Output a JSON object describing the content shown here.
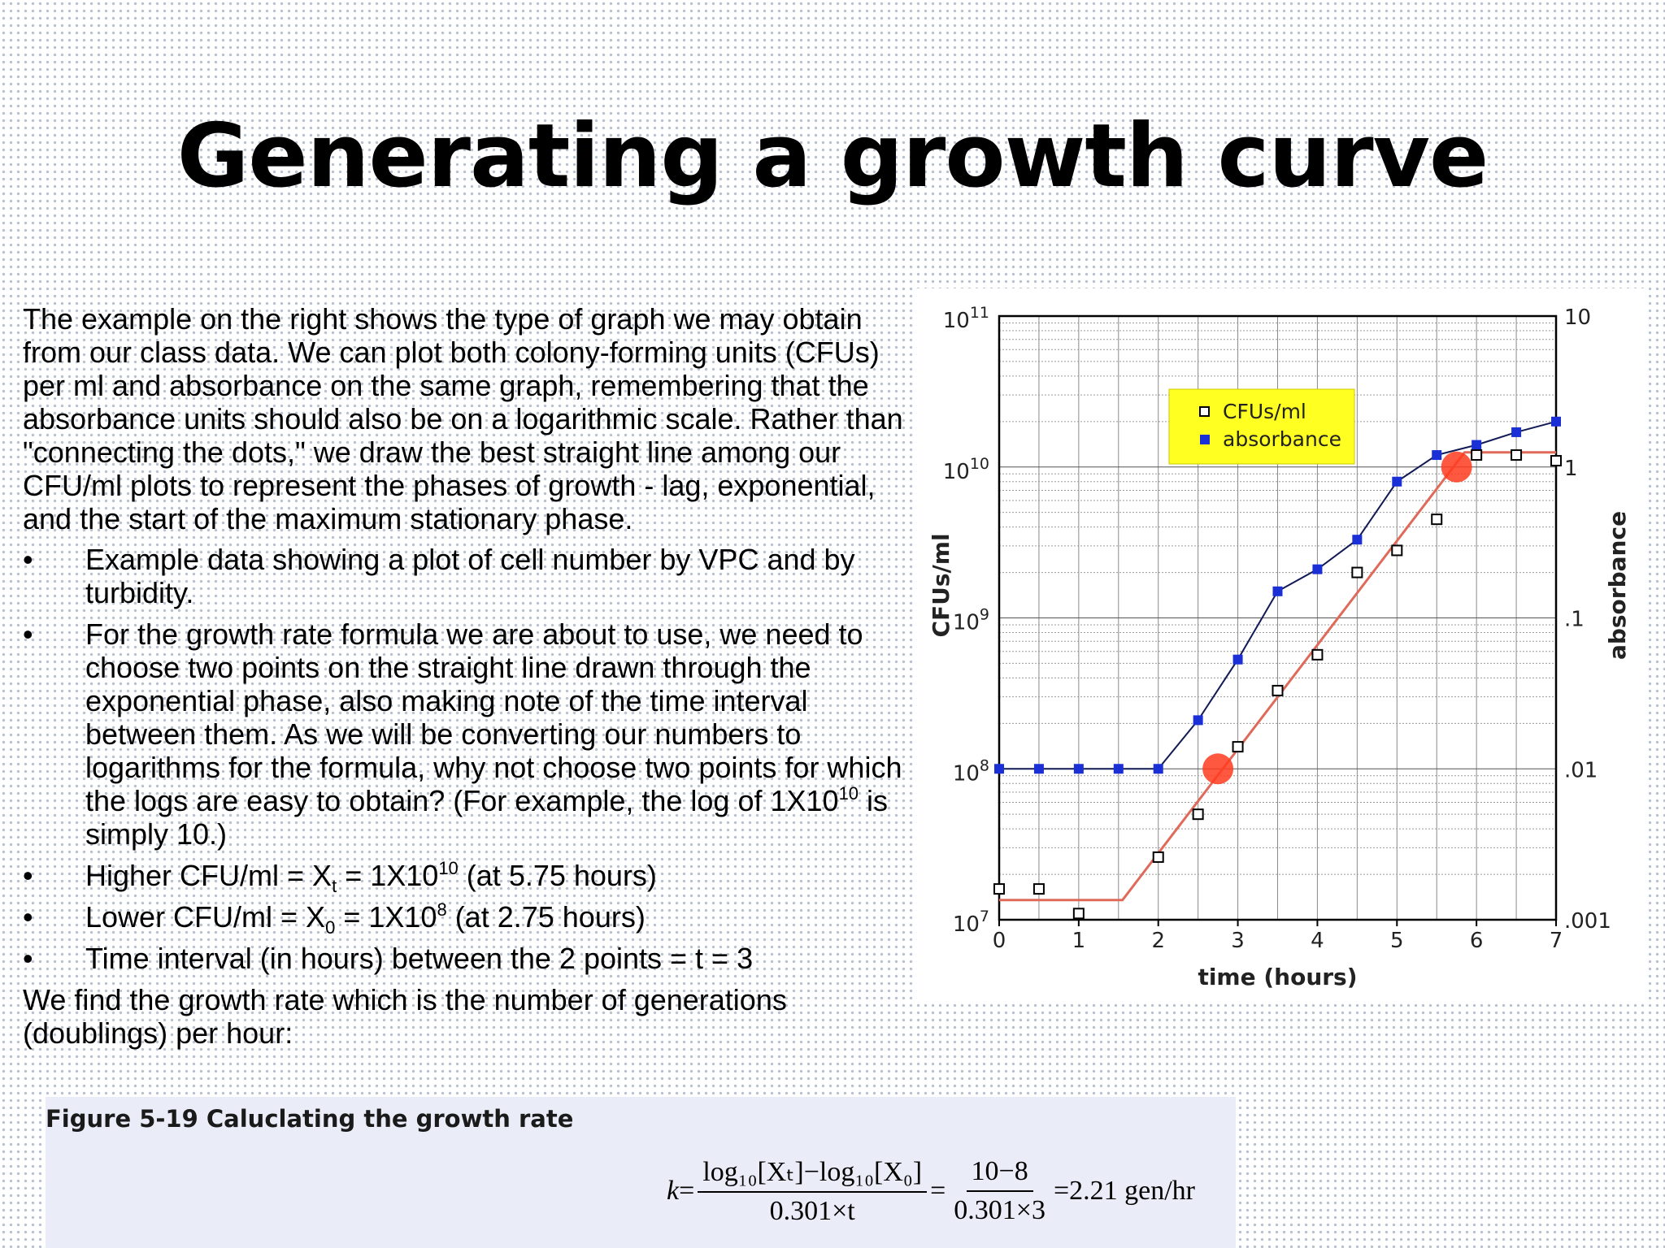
{
  "slide": {
    "title": "Generating a growth curve",
    "intro": "The example on the right shows the type of graph we may obtain from our class data. We can plot both colony-forming units (CFUs) per ml and absorbance on the same graph, remembering that the absorbance units should also be on a logarithmic scale. Rather than \"connecting the dots,\" we draw the best straight line among our CFU/ml plots to represent the phases of growth - lag, exponential, and the start of the maximum stationary phase.",
    "bullet_symbol": "•",
    "bullets": {
      "b1": "Example data showing a plot of cell number by VPC and by turbidity.",
      "b2_text": "For the growth rate formula we are about to use, we need to choose two points on the straight line drawn through the exponential phase, also making note of the time interval between them. As we will be converting our numbers to logarithms for the formula, why not choose two points for which the logs are easy to obtain? (For example, the log of 1X10",
      "b2_exp": "10",
      "b2_end": " is simply 10.)",
      "b3_a": "Higher CFU/ml = X",
      "b3_sub": "t",
      "b3_b": " = 1X10",
      "b3_exp": "10",
      "b3_c": " (at 5.75 hours)",
      "b4_a": "Lower CFU/ml = X",
      "b4_sub": "0",
      "b4_b": " = 1X10",
      "b4_exp": "8",
      "b4_c": " (at 2.75 hours)",
      "b5": "Time interval (in hours) between the 2 points = t = 3"
    },
    "closing": "We find the growth rate which is the number of generations (doublings) per hour:"
  },
  "figure": {
    "caption": "Figure 5-19 Caluclating the growth rate",
    "formula": {
      "k": "k",
      "eq": "=",
      "num1": "log₁₀[Xₜ]−log₁₀[X₀]",
      "den1": "0.301×t",
      "num2": "10−8",
      "den2": "0.301×3",
      "result": "=2.21 gen/hr"
    }
  },
  "chart_data": {
    "type": "scatter",
    "xlabel": "time (hours)",
    "ylabel_left": "CFUs/ml",
    "ylabel_right": "absorbance",
    "xlim": [
      0,
      7
    ],
    "x_ticks": [
      "0",
      "1",
      "2",
      "3",
      "4",
      "5",
      "6",
      "7"
    ],
    "ylim_left_log10": [
      7,
      11
    ],
    "y_left_ticks": [
      {
        "base": "10",
        "exp": "7",
        "log": 7
      },
      {
        "base": "10",
        "exp": "8",
        "log": 8
      },
      {
        "base": "10",
        "exp": "9",
        "log": 9
      },
      {
        "base": "10",
        "exp": "10",
        "log": 10
      },
      {
        "base": "10",
        "exp": "11",
        "log": 11
      }
    ],
    "ylim_right_log10": [
      -3,
      1
    ],
    "y_right_ticks": [
      {
        "label": ".001",
        "log": -3
      },
      {
        "label": ".01",
        "log": -2
      },
      {
        "label": ".1",
        "log": -1
      },
      {
        "label": "1",
        "log": 0
      },
      {
        "label": "10",
        "log": 1
      }
    ],
    "scale": "log",
    "grid": true,
    "legend_position": "top-center",
    "legend_bg": "#ffff22",
    "series": [
      {
        "name": "CFUs/ml",
        "marker": "open-square",
        "color": "#000000",
        "x": [
          0,
          0.5,
          1,
          2,
          2.5,
          3,
          3.5,
          4,
          4.5,
          5,
          5.5,
          6,
          6.5,
          7
        ],
        "y": [
          16000000.0,
          16000000.0,
          11000000.0,
          26000000.0,
          50000000.0,
          140000000.0,
          330000000.0,
          570000000.0,
          2000000000.0,
          2800000000.0,
          4500000000.0,
          12000000000.0,
          12000000000.0,
          11000000000.0
        ]
      },
      {
        "name": "absorbance",
        "marker": "filled-square",
        "color": "#1a2fd6",
        "x": [
          0,
          0.5,
          1,
          1.5,
          2,
          2.5,
          3,
          3.5,
          4,
          4.5,
          5,
          5.5,
          6,
          6.5,
          7
        ],
        "y": [
          0.01,
          0.01,
          0.01,
          0.01,
          0.01,
          0.021,
          0.053,
          0.15,
          0.21,
          0.33,
          0.8,
          1.2,
          1.4,
          1.7,
          2.0
        ]
      }
    ],
    "fit_line": {
      "color": "#e06a5a",
      "x": [
        0,
        1.55,
        5.85,
        7
      ],
      "y": [
        13500000.0,
        13500000.0,
        12500000000.0,
        12500000000.0
      ]
    },
    "highlight_points": {
      "color": "#ff3b1e",
      "x": [
        2.75,
        5.75
      ],
      "y": [
        100000000.0,
        10000000000.0
      ]
    }
  }
}
